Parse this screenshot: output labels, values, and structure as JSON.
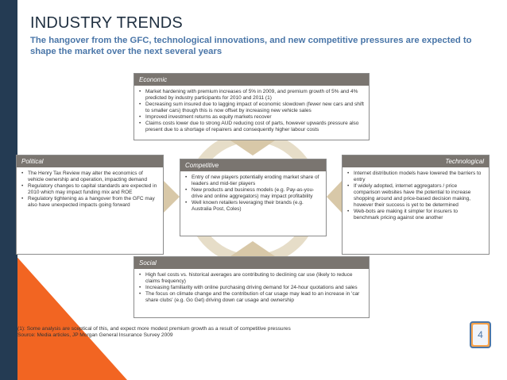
{
  "slide": {
    "title": "INDUSTRY TRENDS",
    "subtitle": "The hangover from the GFC, technological innovations, and new competitive pressures are expected to shape the market over the next several years",
    "page_number": "4"
  },
  "economic": {
    "label": "Economic",
    "items": [
      "Market hardening with premium increases of 5% in 2009, and premium growth of 5% and 4% predicted by industry participants for 2010 and 2011 (1)",
      "Decreasing sum insured due to lagging impact of economic slowdown (fewer new cars and shift to smaller cars) though this is now offset by increasing new vehicle sales",
      "Improved investment returns as equity markets recover",
      "Claims costs lower due to strong AUD reducing cost of parts, however upwards pressure also present due to a shortage of repairers and consequently higher labour costs"
    ]
  },
  "political": {
    "label": "Political",
    "items": [
      "The Henry Tax Review may alter the economics of vehicle ownership and operation, impacting demand",
      "Regulatory changes to capital standards are expected in 2010 which may impact funding mix and ROE",
      "Regulatory tightening as a hangover from the GFC may also have unexpected impacts going forward"
    ]
  },
  "competitive": {
    "label": "Competitive",
    "items": [
      "Entry of new players potentially eroding market share of leaders and mid-tier players",
      "New products and business models (e.g. Pay-as-you-drive and online aggregators) may impact profitability",
      "Well known retailers leveraging their brands (e.g. Australia Post, Coles)"
    ]
  },
  "technological": {
    "label": "Technological",
    "items": [
      "Internet distribution models have lowered the barriers to entry",
      "If widely adopted, internet aggregators / price comparison websites have the potential to increase shopping around and price-based decision making, however their success is yet to be determined",
      "Web-bots are making it simpler for insurers to benchmark pricing against one another"
    ]
  },
  "social": {
    "label": "Social",
    "items": [
      "High fuel costs vs. historical averages are contributing to declining car use (likely to reduce claims frequency)",
      "Increasing familiarity with online purchasing driving demand for 24-hour quotations and sales",
      "The focus on climate change and the contribution of car usage may lead to an increase in 'car share clubs' (e.g. Go Get) driving down car usage and ownership"
    ]
  },
  "footnotes": {
    "note1": "(1): Some analysis are sceptical of this, and expect more modest premium growth as a result of competitive pressures",
    "source": "Source: Media articles, JP Morgan General Insurance Survey 2009"
  },
  "colors": {
    "navy": "#243b53",
    "orange": "#f26522",
    "header_gray": "#7a7570",
    "arrow_tan": "#d8c8a8",
    "subtitle_blue": "#4a76a8"
  }
}
